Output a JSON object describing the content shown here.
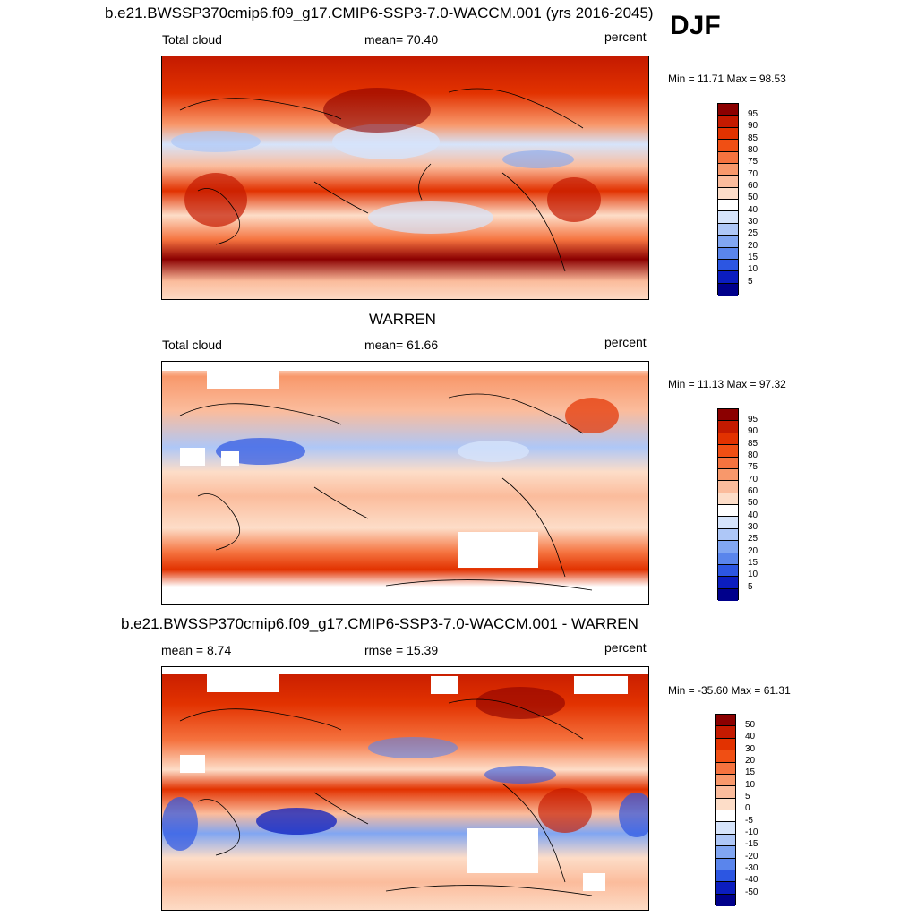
{
  "season": "DJF",
  "panels": [
    {
      "title": "b.e21.BWSSP370cmip6.f09_g17.CMIP6-SSP3-7.0-WACCM.001 (yrs 2016-2045)",
      "left_label": "Total cloud",
      "center_label": "mean=  70.40",
      "right_label": "percent",
      "minmax": "Min =  11.71 Max =  98.53",
      "colorbar_ticks": [
        "95",
        "90",
        "85",
        "80",
        "75",
        "70",
        "60",
        "50",
        "40",
        "30",
        "25",
        "20",
        "15",
        "10",
        "5"
      ],
      "colorbar_colors": [
        "#8b0000",
        "#c41a00",
        "#e23200",
        "#f04f14",
        "#f5733f",
        "#f8986b",
        "#fbbc9c",
        "#fdddc8",
        "#ffffff",
        "#d6e4fb",
        "#aec7f7",
        "#81a6f2",
        "#5a85ec",
        "#2c56e2",
        "#0b1dbf",
        "#00008b"
      ]
    },
    {
      "title": "WARREN",
      "left_label": "Total cloud",
      "center_label": "mean=  61.66",
      "right_label": "percent",
      "minmax": "Min =  11.13 Max =  97.32",
      "colorbar_ticks": [
        "95",
        "90",
        "85",
        "80",
        "75",
        "70",
        "60",
        "50",
        "40",
        "30",
        "25",
        "20",
        "15",
        "10",
        "5"
      ],
      "colorbar_colors": [
        "#8b0000",
        "#c41a00",
        "#e23200",
        "#f04f14",
        "#f5733f",
        "#f8986b",
        "#fbbc9c",
        "#fdddc8",
        "#ffffff",
        "#d6e4fb",
        "#aec7f7",
        "#81a6f2",
        "#5a85ec",
        "#2c56e2",
        "#0b1dbf",
        "#00008b"
      ]
    },
    {
      "title": "b.e21.BWSSP370cmip6.f09_g17.CMIP6-SSP3-7.0-WACCM.001 - WARREN",
      "left_label": "mean =   8.74",
      "center_label": "rmse =  15.39",
      "right_label": "percent",
      "minmax": "Min = -35.60 Max =  61.31",
      "colorbar_ticks": [
        "50",
        "40",
        "30",
        "20",
        "15",
        "10",
        "5",
        "0",
        "-5",
        "-10",
        "-15",
        "-20",
        "-30",
        "-40",
        "-50"
      ],
      "colorbar_colors": [
        "#8b0000",
        "#c41a00",
        "#e23200",
        "#f04f14",
        "#f5733f",
        "#f8986b",
        "#fbbc9c",
        "#fdddc8",
        "#ffffff",
        "#d6e4fb",
        "#aec7f7",
        "#81a6f2",
        "#5a85ec",
        "#2c56e2",
        "#0b1dbf",
        "#00008b"
      ]
    }
  ]
}
